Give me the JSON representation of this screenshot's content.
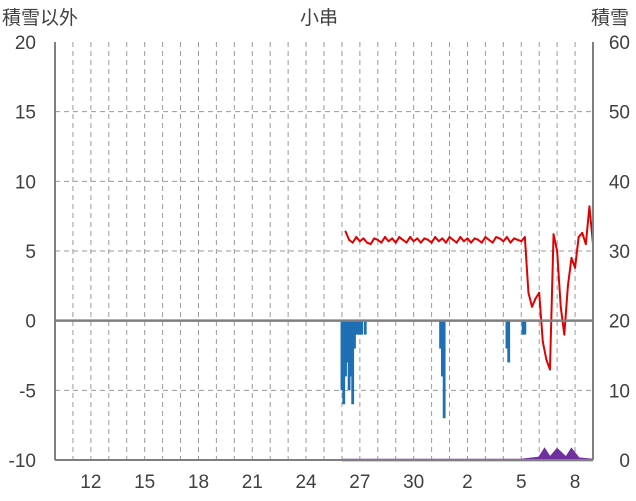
{
  "chart_data": {
    "type": "bar",
    "title": "小串",
    "left_axis_label": "積雪以外",
    "right_axis_label": "積雪",
    "left_ylim": [
      -10,
      20
    ],
    "right_ylim": [
      0,
      60
    ],
    "left_yticks": [
      "20",
      "15",
      "10",
      "5",
      "0",
      "-5",
      "-10"
    ],
    "right_yticks": [
      "60",
      "50",
      "40",
      "30",
      "20",
      "10",
      "0"
    ],
    "x_tick_labels": [
      "12",
      "15",
      "18",
      "21",
      "24",
      "27",
      "30",
      "2",
      "5",
      "8"
    ],
    "grid": "horizontal dashed every 5 units, vertical dashed daily",
    "colors": {
      "precip": "#1f6fb4",
      "temp": "#e00000",
      "snow": "#7030a0",
      "axis": "#7f7f7f"
    },
    "series": [
      {
        "name": "",
        "kind": "bar_downward_left_axis",
        "color": "#1f6fb4",
        "x": [
          26.0,
          26.1,
          26.2,
          26.3,
          26.4,
          26.5,
          26.6,
          26.7,
          26.8,
          26.9,
          27.0,
          27.1,
          27.3,
          31.5,
          31.6,
          31.7,
          35.2,
          35.3,
          36.1,
          36.2
        ],
        "values": [
          -5,
          -6,
          -4,
          -3,
          -5,
          -4,
          -6,
          -2,
          -1,
          -1,
          -1,
          -1,
          -1,
          -2,
          -4,
          -7,
          -2,
          -3,
          -1,
          -1
        ]
      },
      {
        "name": "",
        "kind": "line_left_axis",
        "color": "#e00000",
        "x": [
          26.2,
          26.4,
          26.6,
          26.8,
          27.0,
          27.2,
          27.4,
          27.6,
          27.8,
          28.0,
          28.2,
          28.4,
          28.6,
          28.8,
          29.0,
          29.2,
          29.4,
          29.6,
          29.8,
          30.0,
          30.2,
          30.4,
          30.6,
          30.8,
          31.0,
          31.2,
          31.4,
          31.6,
          31.8,
          32.0,
          32.2,
          32.4,
          32.6,
          32.8,
          33.0,
          33.2,
          33.4,
          33.6,
          33.8,
          34.0,
          34.2,
          34.4,
          34.6,
          34.8,
          35.0,
          35.2,
          35.4,
          35.6,
          35.8,
          36.0,
          36.2,
          36.4,
          36.6,
          36.8,
          37.0,
          37.2,
          37.4,
          37.6,
          37.8,
          38.0,
          38.2,
          38.4,
          38.6,
          38.8,
          39.0,
          39.2,
          39.4,
          39.6,
          39.8,
          40.0
        ],
        "values": [
          6.4,
          5.8,
          5.6,
          6.0,
          5.7,
          5.9,
          5.6,
          5.5,
          5.9,
          5.8,
          5.6,
          6.0,
          5.7,
          5.9,
          5.6,
          6.0,
          5.8,
          5.6,
          6.0,
          5.7,
          5.9,
          5.6,
          5.9,
          5.8,
          5.6,
          6.0,
          5.7,
          5.9,
          5.6,
          6.0,
          5.8,
          5.6,
          6.0,
          5.7,
          5.9,
          5.6,
          5.9,
          5.8,
          5.6,
          6.0,
          5.8,
          5.6,
          6.0,
          5.9,
          5.7,
          6.0,
          5.6,
          5.9,
          5.8,
          5.7,
          6.0,
          2.0,
          1.0,
          1.6,
          2.0,
          -1.5,
          -2.8,
          -3.5,
          6.2,
          5.0,
          1.0,
          -1.0,
          2.5,
          4.5,
          3.8,
          6.0,
          6.3,
          5.5,
          8.2,
          5.5
        ]
      },
      {
        "name": "",
        "kind": "area_right_axis",
        "color": "#7030a0",
        "x": [
          26.0,
          36.0,
          37.0,
          37.3,
          37.6,
          38.0,
          38.5,
          38.8,
          39.2,
          40.0
        ],
        "values": [
          0,
          0,
          0.3,
          1.5,
          0.3,
          1.5,
          0.3,
          1.5,
          0.2,
          0
        ]
      }
    ]
  }
}
